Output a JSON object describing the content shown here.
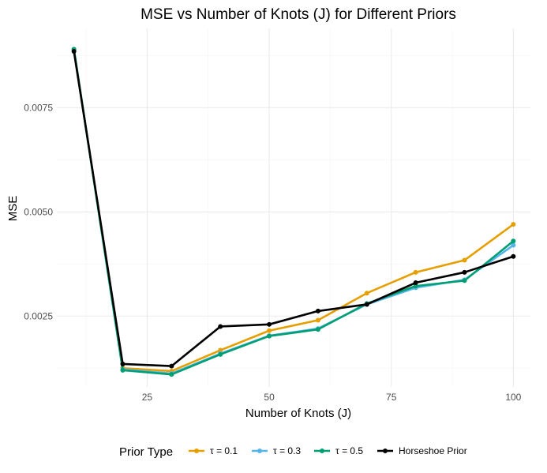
{
  "chart_data": {
    "type": "line",
    "title": "MSE vs Number of Knots (J) for Different Priors",
    "xlabel": "Number of Knots (J)",
    "ylabel": "MSE",
    "x": [
      10,
      20,
      30,
      40,
      50,
      60,
      70,
      80,
      90,
      100
    ],
    "xlim": [
      6.5,
      103.5
    ],
    "ylim": [
      0.0008,
      0.0094
    ],
    "x_ticks": [
      25,
      50,
      75,
      100
    ],
    "x_tick_labels": [
      "25",
      "50",
      "75",
      "100"
    ],
    "y_ticks": [
      0.0025,
      0.005,
      0.0075
    ],
    "y_tick_labels": [
      "0.0025",
      "0.0050",
      "0.0075"
    ],
    "grid": true,
    "legend_position": "bottom",
    "legend_title": "Prior Type",
    "series": [
      {
        "name": "τ = 0.1",
        "color": "#E69F00",
        "values": [
          0.0089,
          0.00125,
          0.00118,
          0.00168,
          0.00215,
          0.0024,
          0.00305,
          0.00355,
          0.00384,
          0.0047
        ]
      },
      {
        "name": "τ = 0.3",
        "color": "#56B4E9",
        "values": [
          0.0089,
          0.00122,
          0.00112,
          0.0016,
          0.00203,
          0.0022,
          0.00278,
          0.00318,
          0.00337,
          0.0042
        ]
      },
      {
        "name": "τ = 0.5",
        "color": "#009E73",
        "values": [
          0.0089,
          0.0012,
          0.0011,
          0.00158,
          0.00202,
          0.00218,
          0.0028,
          0.00322,
          0.00335,
          0.0043
        ]
      },
      {
        "name": "Horseshoe Prior",
        "color": "#000000",
        "values": [
          0.00885,
          0.00135,
          0.0013,
          0.00225,
          0.0023,
          0.00262,
          0.00278,
          0.0033,
          0.00355,
          0.00393
        ]
      }
    ]
  }
}
